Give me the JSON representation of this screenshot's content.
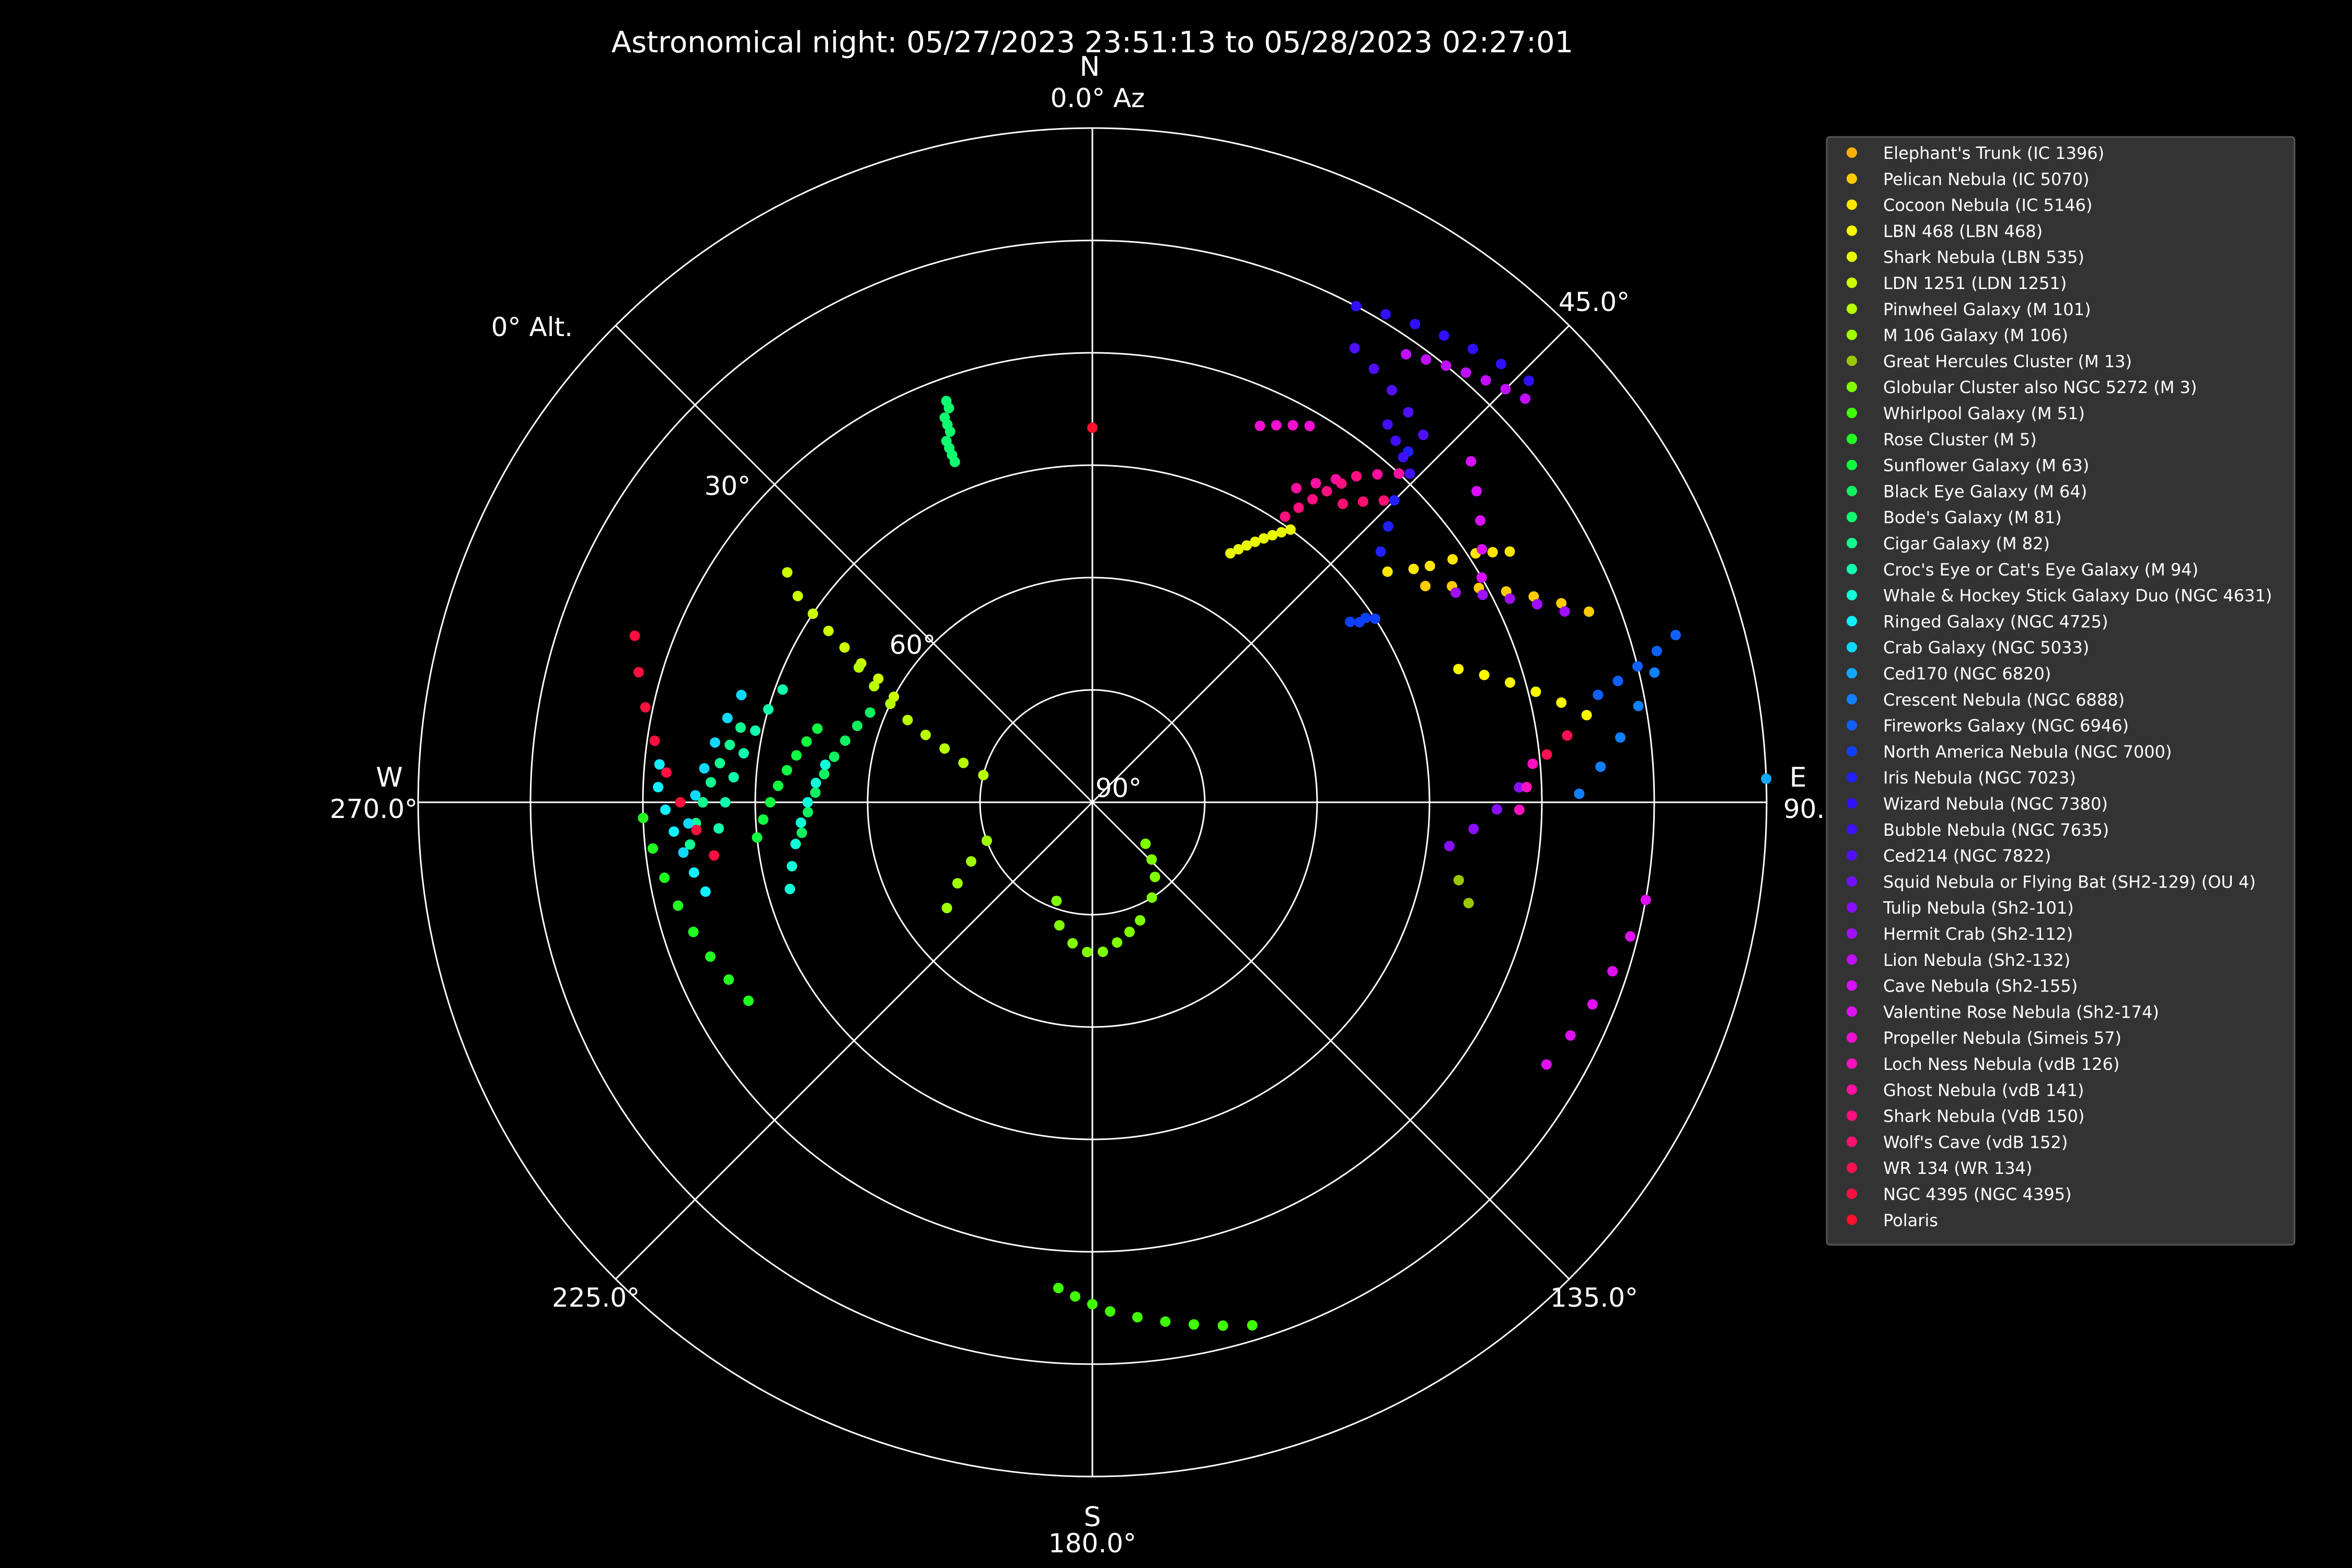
{
  "chart_data": {
    "type": "scatter",
    "projection": "polar-altaz",
    "title": "Astronomical night: 05/27/2023 23:51:13 to 05/28/2023 02:27:01",
    "background": "#000000",
    "axis_color": "#ffffff",
    "legend_background": "#333333",
    "legend_placement": "right",
    "grid": true,
    "radial_axis": {
      "quantity": "altitude",
      "center": 90,
      "edge": 0,
      "ticks": [
        90,
        60,
        30,
        0
      ],
      "tick_labels": [
        "90°",
        "60°",
        "30°",
        "0° Alt."
      ]
    },
    "angular_axis": {
      "quantity": "azimuth",
      "ticks": [
        0,
        45,
        90,
        135,
        180,
        225,
        270,
        315
      ],
      "tick_labels": [
        "0.0° Az",
        "45.0°",
        "90.0°",
        "135.0°",
        "180.0°",
        "225.0°",
        "270.0°",
        ""
      ],
      "cardinals": [
        {
          "az": 0,
          "label": "N"
        },
        {
          "az": 90,
          "label": "E"
        },
        {
          "az": 180,
          "label": "S"
        },
        {
          "az": 270,
          "label": "W"
        }
      ]
    },
    "series": [
      {
        "name": "Elephant's Trunk (IC 1396)",
        "color": "#ffb000",
        "points": []
      },
      {
        "name": "Pelican Nebula (IC 5070)",
        "color": "#ffcc00",
        "points": [
          [
            57,
            37
          ],
          [
            59,
            34
          ],
          [
            61,
            31
          ],
          [
            63,
            28
          ],
          [
            65,
            25
          ],
          [
            67,
            22
          ],
          [
            69,
            19
          ]
        ]
      },
      {
        "name": "Cocoon Nebula (IC 5146)",
        "color": "#ffe600",
        "points": [
          [
            52,
            40
          ],
          [
            54,
            37
          ],
          [
            55,
            35
          ],
          [
            56,
            32
          ],
          [
            57,
            29
          ],
          [
            58,
            27
          ],
          [
            59,
            25
          ]
        ]
      },
      {
        "name": "LBN 468 (LBN 468)",
        "color": "#f8f800",
        "points": [
          [
            70,
            38
          ],
          [
            72,
            35
          ],
          [
            74,
            32
          ],
          [
            76,
            29
          ],
          [
            78,
            26
          ],
          [
            80,
            23
          ]
        ]
      },
      {
        "name": "Shark Nebula (LBN 535)",
        "color": "#e8f800",
        "points": [
          [
            29,
            52
          ],
          [
            30,
            51
          ],
          [
            31,
            50
          ],
          [
            32,
            49
          ],
          [
            33,
            48
          ],
          [
            34,
            47
          ],
          [
            35,
            46
          ],
          [
            36,
            45
          ]
        ]
      },
      {
        "name": "LDN 1251 (LDN 1251)",
        "color": "#ccff00",
        "points": [
          [
            298,
            60
          ],
          [
            300,
            57
          ],
          [
            301,
            54
          ],
          [
            302,
            51
          ],
          [
            303,
            48
          ],
          [
            304,
            45
          ],
          [
            305,
            42
          ],
          [
            307,
            39
          ]
        ]
      },
      {
        "name": "Pinwheel Galaxy (M 101)",
        "color": "#b8ff00",
        "points": [
          [
            284,
            75
          ],
          [
            287,
            72
          ],
          [
            290,
            69
          ],
          [
            292,
            66
          ],
          [
            294,
            63
          ],
          [
            296,
            60
          ],
          [
            298,
            57
          ],
          [
            300,
            54
          ]
        ]
      },
      {
        "name": "M 106 Galaxy (M 106)",
        "color": "#a0ff00",
        "points": [
          [
            250,
            75
          ],
          [
            244,
            72
          ],
          [
            239,
            69
          ],
          [
            234,
            66
          ]
        ]
      },
      {
        "name": "Great Hercules Cluster (M 13)",
        "color": "#9ac800",
        "points": [
          [
            102,
            40
          ],
          [
            105,
            38
          ]
        ]
      },
      {
        "name": "Globular Cluster also NGC 5272 (M 3)",
        "color": "#80ff00",
        "points": [
          [
            200,
            76
          ],
          [
            195,
            73
          ],
          [
            188,
            71
          ],
          [
            182,
            70
          ],
          [
            176,
            70
          ],
          [
            170,
            71
          ],
          [
            164,
            72
          ],
          [
            158,
            73
          ],
          [
            148,
            75
          ],
          [
            140,
            77
          ],
          [
            134,
            79
          ],
          [
            128,
            81
          ]
        ]
      },
      {
        "name": "Whirlpool Galaxy (M 51)",
        "color": "#40ff00",
        "points": [
          [
            184,
            25
          ],
          [
            182,
            24
          ],
          [
            180,
            23
          ],
          [
            178,
            22
          ],
          [
            175,
            21
          ],
          [
            172,
            20
          ],
          [
            169,
            19
          ],
          [
            166,
            18
          ],
          [
            163,
            17
          ]
        ]
      },
      {
        "name": "Rose Cluster (M 5)",
        "color": "#20ff20",
        "points": [
          [
            268,
            30
          ],
          [
            264,
            31
          ],
          [
            260,
            32
          ],
          [
            256,
            33
          ],
          [
            252,
            34
          ],
          [
            248,
            35
          ],
          [
            244,
            36
          ],
          [
            240,
            37
          ]
        ]
      },
      {
        "name": "Sunflower Galaxy (M 63)",
        "color": "#10ff40",
        "points": [
          [
            285,
            52
          ],
          [
            282,
            51
          ],
          [
            279,
            50
          ],
          [
            276,
            49
          ],
          [
            273,
            48
          ],
          [
            270,
            47
          ],
          [
            267,
            46
          ],
          [
            264,
            45
          ]
        ]
      },
      {
        "name": "Black Eye Galaxy (M 64)",
        "color": "#10f060",
        "points": [
          [
            292,
            58
          ],
          [
            288,
            57
          ],
          [
            284,
            56
          ],
          [
            280,
            55
          ],
          [
            276,
            54
          ],
          [
            272,
            53
          ],
          [
            268,
            52
          ],
          [
            264,
            51
          ]
        ]
      },
      {
        "name": "Bode's Galaxy (M 81)",
        "color": "#10ff70",
        "points": [
          [
            338,
            41
          ],
          [
            338,
            40
          ],
          [
            338,
            39
          ],
          [
            338,
            38
          ],
          [
            339,
            37
          ],
          [
            339,
            36
          ],
          [
            339,
            35
          ],
          [
            340,
            34
          ],
          [
            340,
            33
          ]
        ]
      },
      {
        "name": "Cigar Galaxy (M 82)",
        "color": "#10ff90",
        "points": [
          [
            282,
            42
          ],
          [
            279,
            41
          ],
          [
            276,
            40
          ],
          [
            273,
            39
          ],
          [
            270,
            38
          ],
          [
            267,
            37
          ],
          [
            264,
            36
          ]
        ]
      },
      {
        "name": "Croc's Eye or Cat's Eye Galaxy (M 94)",
        "color": "#10ffb0",
        "points": [
          [
            290,
            46
          ],
          [
            286,
            45
          ],
          [
            282,
            44
          ],
          [
            278,
            43
          ],
          [
            274,
            42
          ],
          [
            270,
            41
          ],
          [
            266,
            40
          ]
        ]
      },
      {
        "name": "Whale & Hockey Stick Galaxy Duo (NGC 4631)",
        "color": "#10ffd8",
        "points": [
          [
            278,
            54
          ],
          [
            274,
            53
          ],
          [
            270,
            52
          ],
          [
            266,
            51
          ],
          [
            262,
            50
          ],
          [
            258,
            49
          ],
          [
            254,
            48
          ]
        ]
      },
      {
        "name": "Ringed Galaxy (NGC 4725)",
        "color": "#10f0ff",
        "points": [
          [
            275,
            32
          ],
          [
            272,
            32
          ],
          [
            269,
            33
          ],
          [
            266,
            34
          ],
          [
            263,
            35
          ],
          [
            260,
            36
          ],
          [
            257,
            37
          ]
        ]
      },
      {
        "name": "Crab Galaxy (NGC 5033)",
        "color": "#10d8ff",
        "points": [
          [
            287,
            41
          ],
          [
            283,
            40
          ],
          [
            279,
            39
          ],
          [
            275,
            38
          ],
          [
            271,
            37
          ],
          [
            267,
            36
          ],
          [
            263,
            35
          ]
        ]
      },
      {
        "name": "Ced170 (NGC 6820)",
        "color": "#10a8ff",
        "points": [
          [
            88,
            0
          ]
        ]
      },
      {
        "name": "Crescent Nebula (NGC 6888)",
        "color": "#1080ff",
        "points": [
          [
            77,
            13
          ],
          [
            80,
            16
          ],
          [
            83,
            19
          ],
          [
            86,
            22
          ],
          [
            89,
            25
          ]
        ]
      },
      {
        "name": "Fireworks Galaxy (NGC 6946)",
        "color": "#1060ff",
        "points": [
          [
            74,
            9
          ],
          [
            75,
            12
          ],
          [
            76,
            15
          ],
          [
            77,
            18
          ],
          [
            78,
            21
          ]
        ]
      },
      {
        "name": "North America Nebula (NGC 7000)",
        "color": "#1040ff",
        "points": [
          [
            55,
            48
          ],
          [
            56,
            47
          ],
          [
            56,
            46
          ],
          [
            57,
            45
          ]
        ]
      },
      {
        "name": "Iris Nebula (NGC 7023)",
        "color": "#2020ff",
        "points": [
          [
            42,
            27
          ],
          [
            43,
            30
          ],
          [
            45,
            33
          ],
          [
            47,
            36
          ],
          [
            49,
            39
          ]
        ]
      },
      {
        "name": "Wizard Nebula (NGC 7380)",
        "color": "#3010ff",
        "points": [
          [
            28,
            15
          ],
          [
            31,
            14
          ],
          [
            34,
            13
          ],
          [
            37,
            12
          ],
          [
            40,
            11
          ],
          [
            43,
            10
          ],
          [
            46,
            9
          ]
        ]
      },
      {
        "name": "Bubble Nebula (NGC 7635)",
        "color": "#4010ff",
        "points": [
          [
            38,
            26
          ],
          [
            40,
            27
          ],
          [
            42,
            28
          ],
          [
            44,
            29
          ]
        ]
      },
      {
        "name": "Ced214 (NGC 7822)",
        "color": "#5010ff",
        "points": [
          [
            30,
            20
          ],
          [
            33,
            21
          ],
          [
            36,
            22
          ],
          [
            39,
            23
          ],
          [
            42,
            24
          ]
        ]
      },
      {
        "name": "Squid Nebula or Flying Bat (SH2-129) (OU 4)",
        "color": "#7010ff",
        "points": []
      },
      {
        "name": "Tulip Nebula (Sh2-101)",
        "color": "#8810ff",
        "points": [
          [
            88,
            33
          ],
          [
            91,
            36
          ],
          [
            94,
            39
          ],
          [
            97,
            42
          ]
        ]
      },
      {
        "name": "Hermit Crab (Sh2-112)",
        "color": "#a010ff",
        "points": [
          [
            60,
            34
          ],
          [
            62,
            31
          ],
          [
            64,
            28
          ],
          [
            66,
            25
          ],
          [
            68,
            22
          ]
        ]
      },
      {
        "name": "Lion Nebula (Sh2-132)",
        "color": "#c010ff",
        "points": [
          [
            35,
            17
          ],
          [
            37,
            16
          ],
          [
            39,
            15
          ],
          [
            41,
            14
          ],
          [
            43,
            13
          ],
          [
            45,
            12
          ],
          [
            47,
            11
          ]
        ]
      },
      {
        "name": "Cave Nebula (Sh2-155)",
        "color": "#d810ff",
        "points": [
          [
            48,
            22
          ],
          [
            51,
            24
          ],
          [
            54,
            26
          ],
          [
            57,
            28
          ],
          [
            60,
            30
          ]
        ]
      },
      {
        "name": "Valentine Rose Nebula (Sh2-174)",
        "color": "#e010f0",
        "points": [
          [
            100,
            15
          ],
          [
            104,
            16
          ],
          [
            108,
            17
          ],
          [
            112,
            18
          ],
          [
            116,
            19
          ],
          [
            120,
            20
          ]
        ]
      },
      {
        "name": "Propeller Nebula (Simeis 57)",
        "color": "#f010d0",
        "points": [
          [
            24,
            35
          ],
          [
            26,
            34
          ],
          [
            28,
            33
          ],
          [
            30,
            32
          ]
        ]
      },
      {
        "name": "Loch Ness Nebula (vdB 126)",
        "color": "#ff10c0",
        "points": [
          [
            85,
            31
          ],
          [
            88,
            32
          ],
          [
            91,
            33
          ]
        ]
      },
      {
        "name": "Ghost Nebula (vdB 141)",
        "color": "#ff10a0",
        "points": [
          [
            33,
            40
          ],
          [
            35,
            38
          ],
          [
            37,
            36
          ],
          [
            39,
            34
          ],
          [
            41,
            32
          ],
          [
            43,
            30
          ]
        ]
      },
      {
        "name": "Shark Nebula (VdB 150)",
        "color": "#ff1080",
        "points": [
          [
            34,
            44
          ],
          [
            35,
            42
          ],
          [
            36,
            40
          ],
          [
            37,
            38
          ],
          [
            38,
            36
          ],
          [
            39,
            34
          ]
        ]
      },
      {
        "name": "Wolf's Cave (vdB 152)",
        "color": "#ff1070",
        "points": [
          [
            40,
            38
          ],
          [
            42,
            36
          ],
          [
            44,
            34
          ]
        ]
      },
      {
        "name": "WR 134 (WR 134)",
        "color": "#ff1050",
        "points": [
          [
            82,
            26
          ],
          [
            84,
            29
          ]
        ]
      },
      {
        "name": "NGC 4395 (NGC 4395)",
        "color": "#ff1040",
        "points": [
          [
            290,
            25
          ],
          [
            286,
            27
          ],
          [
            282,
            29
          ],
          [
            278,
            31
          ],
          [
            274,
            33
          ],
          [
            270,
            35
          ],
          [
            266,
            37
          ],
          [
            262,
            39
          ]
        ]
      },
      {
        "name": "Polaris",
        "color": "#ff1030",
        "points": [
          [
            0,
            40
          ]
        ]
      }
    ]
  }
}
